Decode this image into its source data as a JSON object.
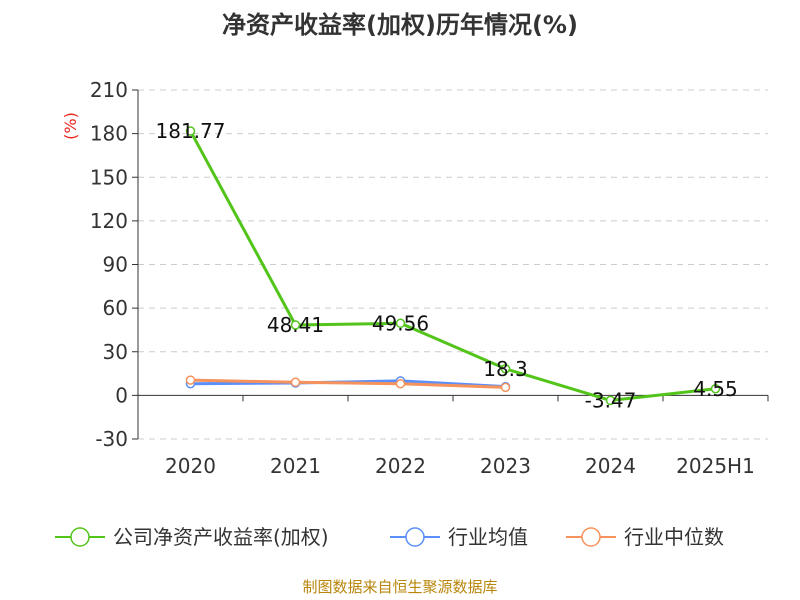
{
  "chart_data": {
    "type": "line",
    "title": "净资产收益率(加权)历年情况(%)",
    "ylabel": "(%)",
    "categories": [
      "2020",
      "2021",
      "2022",
      "2023",
      "2024",
      "2025H1"
    ],
    "ylim": [
      -30,
      210
    ],
    "yticks": [
      "-30",
      "0",
      "30",
      "60",
      "90",
      "120",
      "150",
      "180",
      "210"
    ],
    "grid": true,
    "legend_position": "bottom",
    "series": [
      {
        "name": "公司净资产收益率(加权)",
        "color": "#52c41a",
        "values": [
          181.77,
          48.41,
          49.56,
          18.3,
          -3.47,
          4.55
        ],
        "labels": [
          "181.77",
          "48.41",
          "49.56",
          "18.3",
          "-3.47",
          "4.55"
        ]
      },
      {
        "name": "行业均值",
        "color": "#5b8ff9",
        "values": [
          8.0,
          8.5,
          10.0,
          6.0,
          null,
          null
        ],
        "labels": []
      },
      {
        "name": "行业中位数",
        "color": "#f6925b",
        "values": [
          10.5,
          9.0,
          8.0,
          5.5,
          null,
          null
        ],
        "labels": []
      }
    ]
  },
  "source": "制图数据来自恒生聚源数据库"
}
